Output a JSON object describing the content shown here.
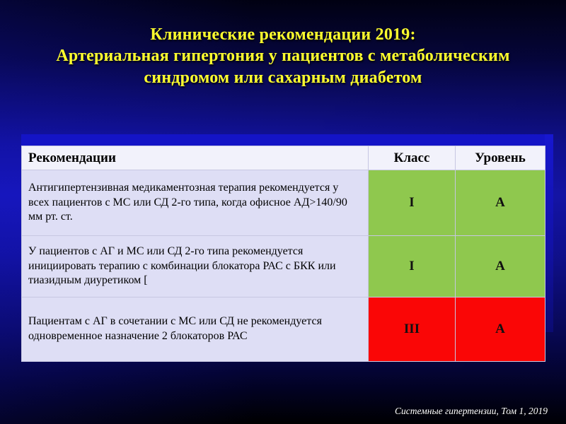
{
  "slide": {
    "title": {
      "lines": [
        "Клинические рекомендации 2019:",
        "Артериальная гипертония у пациентов с метаболическим",
        "синдромом или сахарным диабетом"
      ],
      "color": "#FFFF2E"
    },
    "table": {
      "headers": {
        "recommendation": "Рекомендации",
        "class": "Класс",
        "level": "Уровень"
      },
      "rows": [
        {
          "text": "Антигипертензивная медикаментозная терапия рекомендуется у всех пациентов с МС или СД 2-го типа, когда офисное АД>140/90 мм рт. ст.",
          "class_value": "I",
          "level_value": "A",
          "grade_color": "#8FC84E"
        },
        {
          "text": "У пациентов с АГ и МС или СД 2-го типа рекомендуется инициировать терапию с комбинации блокатора РАС с БКК или тиазидным диуретиком [",
          "class_value": "I",
          "level_value": "A",
          "grade_color": "#8FC84E"
        },
        {
          "text": "Пациентам с АГ в сочетании с МС или СД не рекомендуется одновременное назначение 2 блокаторов РАС",
          "class_value": "III",
          "level_value": "A",
          "grade_color": "#FA0606"
        }
      ]
    },
    "footer": {
      "citation": "Системные гипертензии, Том 1, 2019"
    },
    "colors": {
      "grade_green": "#8FC84E",
      "grade_red": "#FA0606",
      "accent_bar_blue": "#1414C6",
      "title_yellow": "#FFFF2E",
      "background_blue": "#1717BB"
    }
  }
}
